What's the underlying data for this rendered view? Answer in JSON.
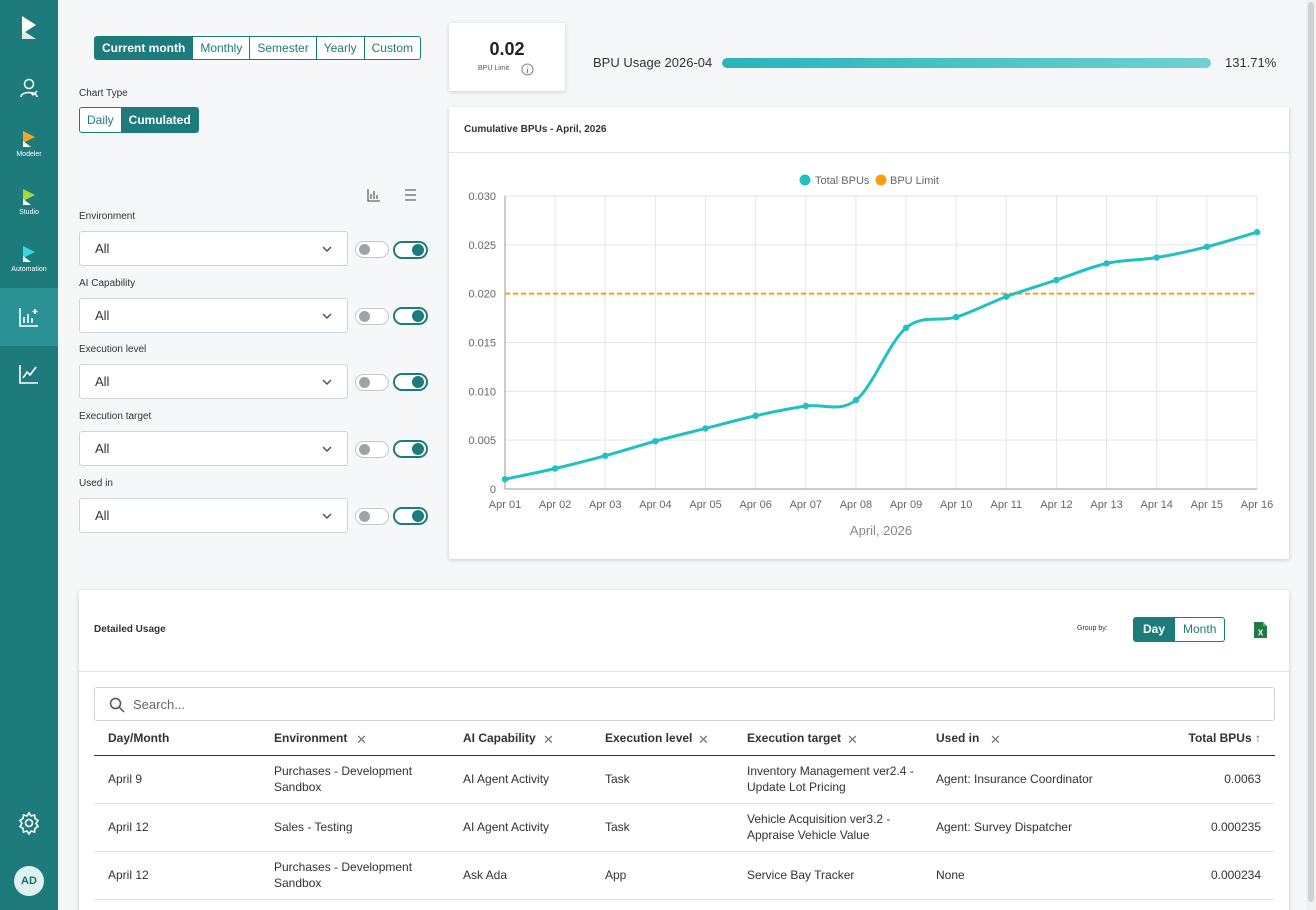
{
  "sidebar": {
    "items": [
      {
        "icon": "logo-icon",
        "label": ""
      },
      {
        "icon": "user-icon",
        "label": ""
      },
      {
        "icon": "modeler-icon",
        "label": "Modeler"
      },
      {
        "icon": "studio-icon",
        "label": "Studio"
      },
      {
        "icon": "automation-icon",
        "label": "Automation"
      },
      {
        "icon": "analytics-icon",
        "label": ""
      },
      {
        "icon": "line-chart-icon",
        "label": ""
      },
      {
        "icon": "gear-icon",
        "label": ""
      }
    ],
    "avatar": "AD"
  },
  "period": {
    "options": [
      "Current month",
      "Monthly",
      "Semester",
      "Yearly",
      "Custom"
    ],
    "selected": "Current month"
  },
  "chart_type": {
    "label": "Chart Type",
    "options": [
      "Daily",
      "Cumulated"
    ],
    "selected": "Cumulated"
  },
  "filters": [
    {
      "label": "Environment",
      "value": "All",
      "toggle1": false,
      "toggle2": true
    },
    {
      "label": "AI Capability",
      "value": "All",
      "toggle1": false,
      "toggle2": true
    },
    {
      "label": "Execution level",
      "value": "All",
      "toggle1": false,
      "toggle2": true
    },
    {
      "label": "Execution target",
      "value": "All",
      "toggle1": false,
      "toggle2": true
    },
    {
      "label": "Used in",
      "value": "All",
      "toggle1": false,
      "toggle2": true
    }
  ],
  "limit_card": {
    "value": "0.02",
    "label": "BPU Limit"
  },
  "usage": {
    "label": "BPU Usage 2026-04",
    "percent_text": "131.71%",
    "fill_fraction": 1.0
  },
  "chart_card": {
    "title": "Cumulative BPUs - April, 2026"
  },
  "chart_data": {
    "type": "line",
    "title": "",
    "xlabel": "April, 2026",
    "ylabel": "",
    "categories": [
      "Apr 01",
      "Apr 02",
      "Apr 03",
      "Apr 04",
      "Apr 05",
      "Apr 06",
      "Apr 07",
      "Apr 08",
      "Apr 09",
      "Apr 10",
      "Apr 11",
      "Apr 12",
      "Apr 13",
      "Apr 14",
      "Apr 15",
      "Apr 16"
    ],
    "series": [
      {
        "name": "Total BPUs",
        "color": "#1fc1c3",
        "values": [
          0.001,
          0.0021,
          0.0034,
          0.0049,
          0.0062,
          0.0075,
          0.0085,
          0.0091,
          0.0165,
          0.0176,
          0.0197,
          0.0214,
          0.0231,
          0.0237,
          0.0248,
          0.0263
        ]
      },
      {
        "name": "BPU Limit",
        "color": "#ff9f0a",
        "values": [
          0.02,
          0.02,
          0.02,
          0.02,
          0.02,
          0.02,
          0.02,
          0.02,
          0.02,
          0.02,
          0.02,
          0.02,
          0.02,
          0.02,
          0.02,
          0.02
        ]
      }
    ],
    "yticks": [
      "0",
      "0.005",
      "0.010",
      "0.015",
      "0.020",
      "0.025",
      "0.030"
    ],
    "ylim": [
      0,
      0.03
    ],
    "legend": "top-center",
    "grid": true
  },
  "detailed": {
    "title": "Detailed Usage",
    "group_by_label": "Group by:",
    "group_options": [
      "Day",
      "Month"
    ],
    "group_selected": "Day",
    "search_placeholder": "Search...",
    "columns": [
      "Day/Month",
      "Environment",
      "AI Capability",
      "Execution level",
      "Execution target",
      "Used in",
      "Total BPUs"
    ],
    "rows": [
      [
        "April 9",
        "Purchases - Development Sandbox",
        "AI Agent Activity",
        "Task",
        "Inventory Management ver2.4 - Update Lot Pricing",
        "Agent: Insurance Coordinator",
        "0.0063"
      ],
      [
        "April 12",
        "Sales - Testing",
        "AI Agent Activity",
        "Task",
        "Vehicle Acquisition ver3.2 - Appraise Vehicle Value",
        "Agent: Survey Dispatcher",
        "0.000235"
      ],
      [
        "April 12",
        "Purchases - Development Sandbox",
        "Ask Ada",
        "App",
        "Service Bay Tracker",
        "None",
        "0.000234"
      ]
    ]
  }
}
